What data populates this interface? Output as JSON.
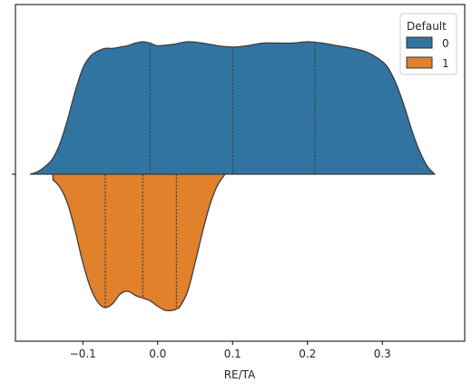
{
  "chart_data": {
    "type": "violin",
    "split": true,
    "orientation": "horizontal",
    "xlabel": "RE/TA",
    "ylabel": "",
    "xlim": [
      -0.19,
      0.41
    ],
    "xticks": [
      -0.1,
      0.0,
      0.1,
      0.2,
      0.3
    ],
    "xtick_labels": [
      "−0.1",
      "0.0",
      "0.1",
      "0.2",
      "0.3"
    ],
    "yticks": [
      ""
    ],
    "grid": false,
    "legend": {
      "title": "Default",
      "position": "top-right",
      "entries": [
        "0",
        "1"
      ]
    },
    "series": [
      {
        "name": "0",
        "color": "#3274a1",
        "side": "upper",
        "quartiles": [
          -0.01,
          0.1,
          0.21
        ],
        "density": {
          "x": [
            -0.17,
            -0.16,
            -0.15,
            -0.14,
            -0.13,
            -0.12,
            -0.11,
            -0.1,
            -0.09,
            -0.08,
            -0.07,
            -0.06,
            -0.05,
            -0.04,
            -0.03,
            -0.02,
            -0.01,
            0.0,
            0.02,
            0.04,
            0.06,
            0.08,
            0.1,
            0.12,
            0.14,
            0.16,
            0.18,
            0.2,
            0.22,
            0.24,
            0.26,
            0.28,
            0.3,
            0.31,
            0.32,
            0.33,
            0.34,
            0.35,
            0.36,
            0.37
          ],
          "y": [
            0.0,
            0.02,
            0.06,
            0.12,
            0.24,
            0.42,
            0.63,
            0.8,
            0.89,
            0.93,
            0.95,
            0.95,
            0.96,
            0.97,
            0.99,
            1.0,
            0.99,
            0.97,
            0.98,
            1.0,
            0.99,
            0.97,
            0.96,
            0.97,
            0.99,
            0.99,
            0.99,
            1.0,
            0.99,
            0.97,
            0.95,
            0.92,
            0.85,
            0.78,
            0.66,
            0.5,
            0.32,
            0.17,
            0.06,
            0.0
          ]
        }
      },
      {
        "name": "1",
        "color": "#e1812c",
        "side": "lower",
        "quartiles": [
          -0.07,
          -0.02,
          0.025
        ],
        "density": {
          "x": [
            -0.14,
            -0.13,
            -0.12,
            -0.11,
            -0.1,
            -0.09,
            -0.08,
            -0.07,
            -0.06,
            -0.05,
            -0.04,
            -0.03,
            -0.02,
            -0.01,
            0.0,
            0.01,
            0.02,
            0.025,
            0.03,
            0.04,
            0.05,
            0.06,
            0.07,
            0.08,
            0.09
          ],
          "y": [
            0.04,
            0.1,
            0.22,
            0.42,
            0.65,
            0.83,
            0.94,
            0.98,
            0.95,
            0.88,
            0.86,
            0.89,
            0.91,
            0.93,
            0.97,
            1.0,
            1.0,
            0.99,
            0.97,
            0.86,
            0.65,
            0.42,
            0.22,
            0.08,
            0.0
          ]
        }
      }
    ]
  }
}
